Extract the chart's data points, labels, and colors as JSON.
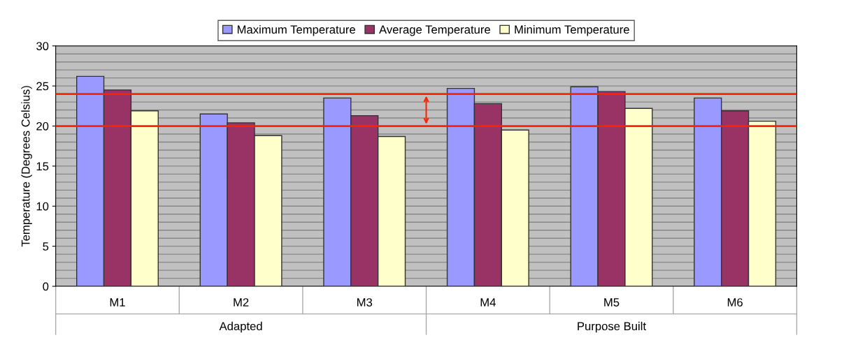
{
  "chart_data": {
    "type": "bar",
    "ylabel": "Temperature (Degrees Celsius)",
    "categories": [
      "M1",
      "M2",
      "M3",
      "M4",
      "M5",
      "M6"
    ],
    "series": [
      {
        "name": "Maximum Temperature",
        "color": "#9999ff",
        "values": [
          26.2,
          21.5,
          23.5,
          24.7,
          24.9,
          23.5
        ]
      },
      {
        "name": "Average Temperature",
        "color": "#993366",
        "values": [
          24.5,
          20.4,
          21.3,
          22.8,
          24.3,
          21.9
        ]
      },
      {
        "name": "Minimum Temperature",
        "color": "#ffffcc",
        "values": [
          21.9,
          18.8,
          18.7,
          19.5,
          22.2,
          20.6
        ]
      }
    ],
    "ylim": [
      0,
      30
    ],
    "yticks": [
      0,
      5,
      10,
      15,
      20,
      25,
      30
    ],
    "ref_lines": [
      {
        "axis": "y",
        "value": 24,
        "color": "#ff2200"
      },
      {
        "axis": "y",
        "value": 20,
        "color": "#ff2200"
      }
    ],
    "annotations": [
      "Adapted",
      "Purpose Built"
    ],
    "grid": "y",
    "legend": "top"
  }
}
